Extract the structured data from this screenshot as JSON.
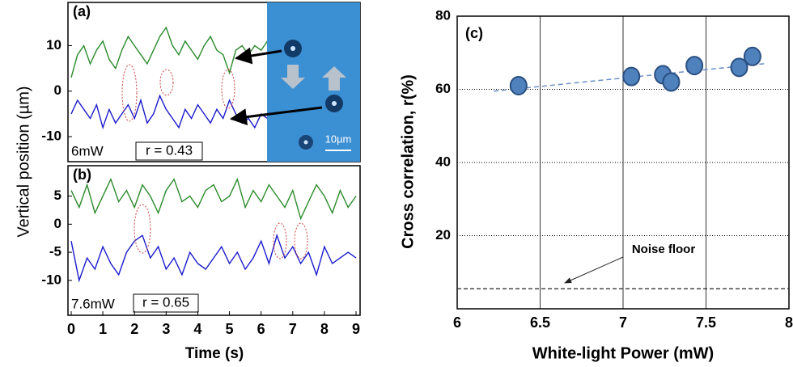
{
  "chart_data": [
    {
      "type": "line",
      "label": "(a)",
      "ylabel": "Vertical position (µm)",
      "x": [
        0,
        0.2,
        0.4,
        0.6,
        0.8,
        1,
        1.2,
        1.4,
        1.6,
        1.8,
        2,
        2.2,
        2.4,
        2.6,
        2.8,
        3,
        3.2,
        3.4,
        3.6,
        3.8,
        4,
        4.2,
        4.4,
        4.6,
        4.8,
        5,
        5.2,
        5.4,
        5.6,
        5.8,
        6,
        6.2
      ],
      "series": [
        {
          "color": "#2a8a2a",
          "values": [
            3,
            8,
            10,
            6,
            9,
            11,
            7,
            5,
            9,
            12,
            10,
            8,
            6,
            9,
            12,
            14,
            10,
            8,
            11,
            9,
            7,
            10,
            12,
            9,
            8,
            4,
            9,
            10,
            8,
            10,
            9,
            11
          ]
        },
        {
          "color": "#1a1acc",
          "values": [
            -5,
            -2,
            -4,
            -6,
            -3,
            -8,
            -4,
            -7,
            -5,
            -3,
            -6,
            -2,
            -7,
            -5,
            -1,
            -4,
            -6,
            -8,
            -4,
            -6,
            -3,
            -5,
            -7,
            -4,
            -6,
            -2,
            -5,
            -7,
            -6,
            -8,
            -5,
            -6
          ]
        }
      ],
      "xlim": [
        0,
        9
      ],
      "ylim": [
        -15.5,
        19.5
      ],
      "yticks": [
        -10,
        0,
        10
      ],
      "annotations": [
        "6mW",
        "r = 0.43"
      ],
      "scale_bar": "10µm"
    },
    {
      "type": "line",
      "label": "(b)",
      "xlabel": "Time (s)",
      "x": [
        0,
        0.25,
        0.5,
        0.75,
        1,
        1.25,
        1.5,
        1.75,
        2,
        2.25,
        2.5,
        2.75,
        3,
        3.25,
        3.5,
        3.75,
        4,
        4.25,
        4.5,
        4.75,
        5,
        5.25,
        5.5,
        5.75,
        6,
        6.25,
        6.5,
        6.75,
        7,
        7.25,
        7.5,
        7.75,
        8,
        8.25,
        8.5,
        8.75,
        9
      ],
      "series": [
        {
          "color": "#2a8a2a",
          "values": [
            6,
            3,
            7,
            2,
            5,
            8,
            4,
            6,
            3,
            7,
            5,
            2,
            6,
            8,
            4,
            5,
            3,
            6,
            7,
            4,
            5,
            8,
            3,
            6,
            4,
            7,
            5,
            3,
            6,
            1,
            4,
            7,
            5,
            2,
            6,
            3,
            5
          ]
        },
        {
          "color": "#1a1acc",
          "values": [
            -3,
            -10,
            -6,
            -8,
            -4,
            -7,
            -9,
            -5,
            -3,
            -2,
            -6,
            -4,
            -8,
            -6,
            -9,
            -5,
            -7,
            -8,
            -6,
            -4,
            -7,
            -5,
            -8,
            -6,
            -3,
            -7,
            -2,
            -6,
            -4,
            -7,
            -5,
            -9,
            -4,
            -7,
            -6,
            -5,
            -6
          ]
        }
      ],
      "xlim": [
        0,
        9
      ],
      "xticks": [
        0,
        1,
        2,
        3,
        4,
        5,
        6,
        7,
        8,
        9
      ],
      "ylim": [
        -16.2,
        10.4
      ],
      "yticks": [
        -10,
        -5,
        0,
        5
      ],
      "annotations": [
        "7.6mW",
        "r = 0.65"
      ]
    },
    {
      "type": "scatter",
      "label": "(c)",
      "xlabel": "White-light Power (mW)",
      "ylabel": "Cross correlation, r(%)",
      "x": [
        6.37,
        7.05,
        7.24,
        7.29,
        7.43,
        7.7,
        7.78
      ],
      "values": [
        61,
        63.5,
        64,
        62,
        66.5,
        66,
        69
      ],
      "color": "#4f81bd",
      "trendline": {
        "x": [
          6.22,
          7.85
        ],
        "y": [
          59.5,
          67
        ]
      },
      "noise_floor": 5.5,
      "noise_label": "Noise floor",
      "xlim": [
        6,
        8
      ],
      "xticks": [
        6,
        6.5,
        7,
        7.5,
        8
      ],
      "ylim": [
        0,
        80
      ],
      "yticks": [
        20,
        40,
        60,
        80
      ],
      "grid": true
    }
  ]
}
